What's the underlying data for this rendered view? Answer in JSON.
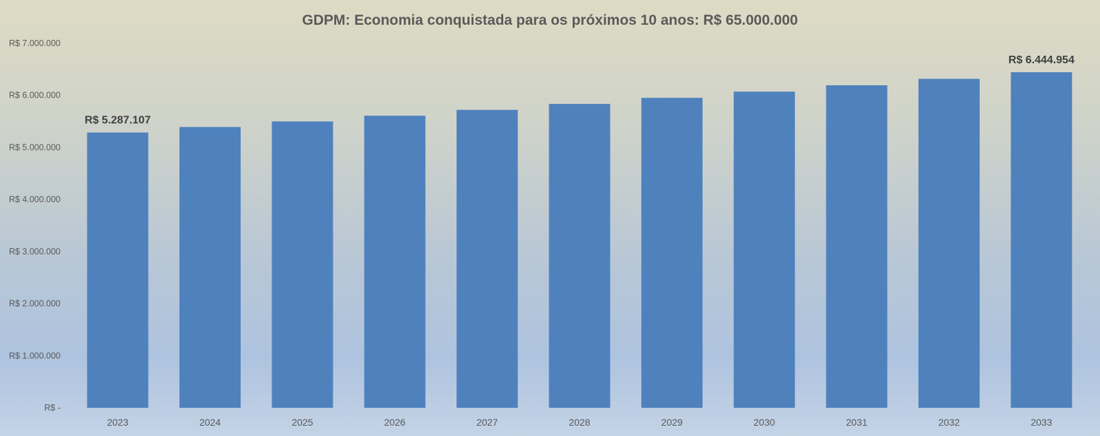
{
  "chart_data": {
    "type": "bar",
    "title": "GDPM:  Economia conquistada para os próximos 10 anos: R$ 65.000.000",
    "xlabel": "",
    "ylabel": "",
    "categories": [
      "2023",
      "2024",
      "2025",
      "2026",
      "2027",
      "2028",
      "2029",
      "2030",
      "2031",
      "2032",
      "2033"
    ],
    "values": [
      5287107,
      5393000,
      5500000,
      5610000,
      5722000,
      5836000,
      5953000,
      6072000,
      6194000,
      6318000,
      6444954
    ],
    "ylim": [
      0,
      7000000
    ],
    "yticks": [
      0,
      1000000,
      2000000,
      3000000,
      4000000,
      5000000,
      6000000,
      7000000
    ],
    "ytick_labels": [
      "R$ -",
      "R$ 1.000.000",
      "R$ 2.000.000",
      "R$ 3.000.000",
      "R$ 4.000.000",
      "R$ 5.000.000",
      "R$ 6.000.000",
      "R$ 7.000.000"
    ],
    "data_labels": [
      {
        "category": "2023",
        "text": "R$ 5.287.107"
      },
      {
        "category": "2033",
        "text": "R$ 6.444.954"
      }
    ],
    "grid": false,
    "legend": "none",
    "colors": {
      "bar": "#4f81bd",
      "title": "#5a5a5a",
      "tick_text": "#595959",
      "data_label": "#404040"
    }
  }
}
